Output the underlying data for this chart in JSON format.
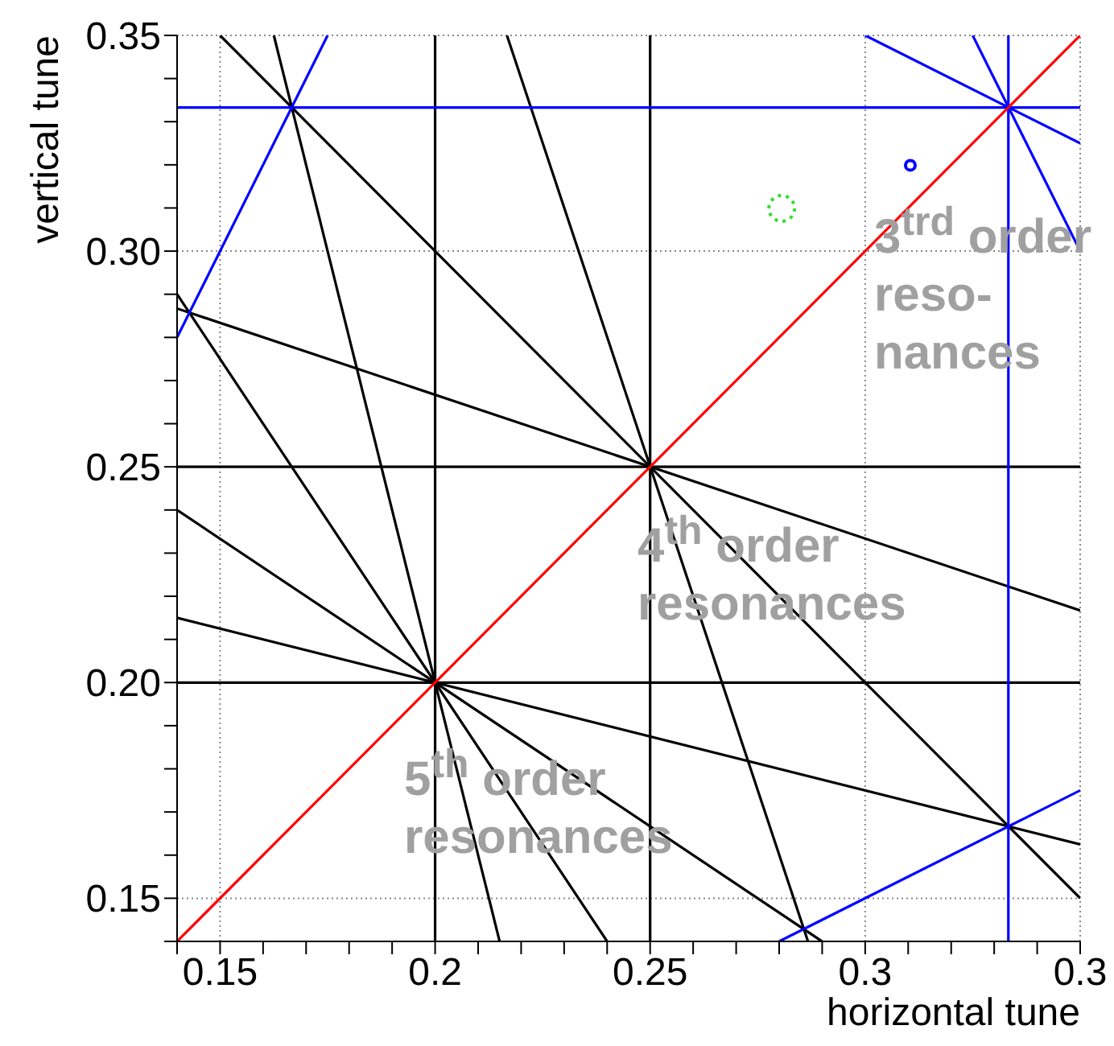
{
  "chart_data": {
    "type": "line",
    "xlabel": "horizontal tune",
    "ylabel": "vertical tune",
    "xlim": [
      0.14,
      0.35
    ],
    "ylim": [
      0.14,
      0.35
    ],
    "xticks": [
      {
        "value": 0.14,
        "label": null
      },
      0.15,
      {
        "value": 0.16,
        "label": null
      },
      {
        "value": 0.17,
        "label": null
      },
      {
        "value": 0.18,
        "label": null
      },
      {
        "value": 0.19,
        "label": null
      },
      0.2,
      {
        "value": 0.21,
        "label": null
      },
      {
        "value": 0.22,
        "label": null
      },
      {
        "value": 0.23,
        "label": null
      },
      {
        "value": 0.24,
        "label": null
      },
      0.25,
      {
        "value": 0.26,
        "label": null
      },
      {
        "value": 0.27,
        "label": null
      },
      {
        "value": 0.28,
        "label": null
      },
      {
        "value": 0.29,
        "label": null
      },
      0.3,
      {
        "value": 0.31,
        "label": null
      },
      {
        "value": 0.32,
        "label": null
      },
      {
        "value": 0.33,
        "label": null
      },
      {
        "value": 0.34,
        "label": null
      },
      {
        "value": 0.35,
        "label": "0.3"
      }
    ],
    "yticks": [
      {
        "value": 0.14,
        "label": null
      },
      0.15,
      {
        "value": 0.16,
        "label": null
      },
      {
        "value": 0.17,
        "label": null
      },
      {
        "value": 0.18,
        "label": null
      },
      {
        "value": 0.19,
        "label": null
      },
      {
        "value": 0.2,
        "label": "0.20"
      },
      {
        "value": 0.21,
        "label": null
      },
      {
        "value": 0.22,
        "label": null
      },
      {
        "value": 0.23,
        "label": null
      },
      {
        "value": 0.24,
        "label": null
      },
      0.25,
      {
        "value": 0.26,
        "label": null
      },
      {
        "value": 0.27,
        "label": null
      },
      {
        "value": 0.28,
        "label": null
      },
      {
        "value": 0.29,
        "label": null
      },
      {
        "value": 0.3,
        "label": "0.30"
      },
      {
        "value": 0.31,
        "label": null
      },
      {
        "value": 0.32,
        "label": null
      },
      {
        "value": 0.33,
        "label": null
      },
      {
        "value": 0.34,
        "label": null
      },
      0.35
    ],
    "grid": true,
    "series": [
      {
        "color": "#000000",
        "x": [
          0.2,
          0.2
        ],
        "values": [
          0.14,
          0.35
        ]
      },
      {
        "color": "#000000",
        "x": [
          0.25,
          0.25
        ],
        "values": [
          0.14,
          0.35
        ]
      },
      {
        "color": "#000000",
        "x": [
          0.14,
          0.35
        ],
        "values": [
          0.2,
          0.2
        ]
      },
      {
        "color": "#000000",
        "x": [
          0.14,
          0.35
        ],
        "values": [
          0.25,
          0.25
        ]
      },
      {
        "color": "#000000",
        "x": [
          0.15,
          0.35
        ],
        "values": [
          0.35,
          0.15
        ]
      },
      {
        "color": "#000000",
        "x": [
          0.1625,
          0.215
        ],
        "values": [
          0.35,
          0.14
        ]
      },
      {
        "color": "#000000",
        "x": [
          0.2167,
          0.2867
        ],
        "values": [
          0.35,
          0.14
        ]
      },
      {
        "color": "#000000",
        "x": [
          0.14,
          0.35
        ],
        "values": [
          0.2867,
          0.2167
        ]
      },
      {
        "color": "#000000",
        "x": [
          0.14,
          0.24
        ],
        "values": [
          0.29,
          0.14
        ]
      },
      {
        "color": "#000000",
        "x": [
          0.14,
          0.29
        ],
        "values": [
          0.24,
          0.14
        ]
      },
      {
        "color": "#000000",
        "x": [
          0.14,
          0.35
        ],
        "values": [
          0.215,
          0.1625
        ]
      },
      {
        "color": "#0000ff",
        "x": [
          0.14,
          0.35
        ],
        "values": [
          0.3333,
          0.3333
        ]
      },
      {
        "color": "#0000ff",
        "x": [
          0.3333,
          0.3333
        ],
        "values": [
          0.14,
          0.35
        ]
      },
      {
        "color": "#0000ff",
        "x": [
          0.14,
          0.175
        ],
        "values": [
          0.28,
          0.35
        ]
      },
      {
        "color": "#0000ff",
        "x": [
          0.28,
          0.35
        ],
        "values": [
          0.14,
          0.175
        ]
      },
      {
        "color": "#0000ff",
        "x": [
          0.3,
          0.35
        ],
        "values": [
          0.35,
          0.325
        ]
      },
      {
        "color": "#0000ff",
        "x": [
          0.325,
          0.35
        ],
        "values": [
          0.35,
          0.3
        ]
      },
      {
        "color": "#ff0000",
        "x": [
          0.14,
          0.35
        ],
        "values": [
          0.14,
          0.35
        ]
      },
      {
        "type": "scatter",
        "color": "#33dd33",
        "marker": "circle",
        "line_style": "dotted",
        "x": [
          0.2806
        ],
        "values": [
          0.3099
        ]
      },
      {
        "type": "scatter",
        "color": "#0000ff",
        "marker": "circle",
        "x": [
          0.3105
        ],
        "values": [
          0.3199
        ]
      }
    ],
    "annotations": [
      "3$^{trd}$ order\nreso-\nnances",
      "4$^{th}$ order\nresonances",
      "5$^{th}$ order\nresonances"
    ]
  }
}
